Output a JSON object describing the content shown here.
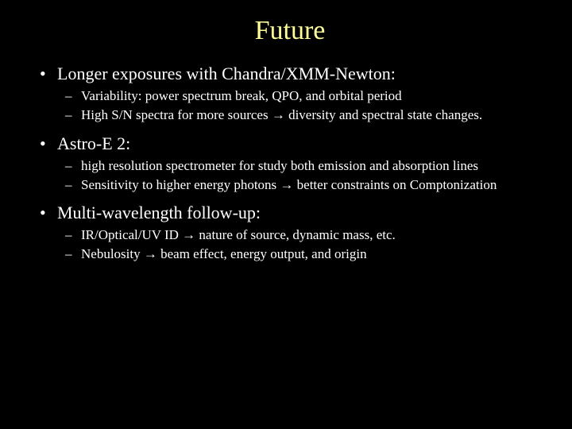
{
  "title": "Future",
  "sections": [
    {
      "heading": "Longer exposures with Chandra/XMM-Newton:",
      "subs": [
        "Variability: power spectrum break, QPO, and orbital period",
        "High S/N spectra for more sources → diversity and spectral state changes."
      ]
    },
    {
      "heading": "Astro-E 2:",
      "subs": [
        "high resolution spectrometer for study both emission and absorption lines",
        "Sensitivity to higher energy photons → better constraints on Comptonization"
      ]
    },
    {
      "heading": "Multi-wavelength follow-up:",
      "subs": [
        "IR/Optical/UV ID → nature of source, dynamic mass, etc.",
        "Nebulosity → beam effect, energy output, and origin"
      ]
    }
  ],
  "style": {
    "background_color": "#000000",
    "title_color": "#ffff99",
    "text_color": "#ffffff",
    "title_fontsize": 34,
    "l1_fontsize": 22,
    "l2_fontsize": 17,
    "font_family": "Comic Sans MS"
  }
}
